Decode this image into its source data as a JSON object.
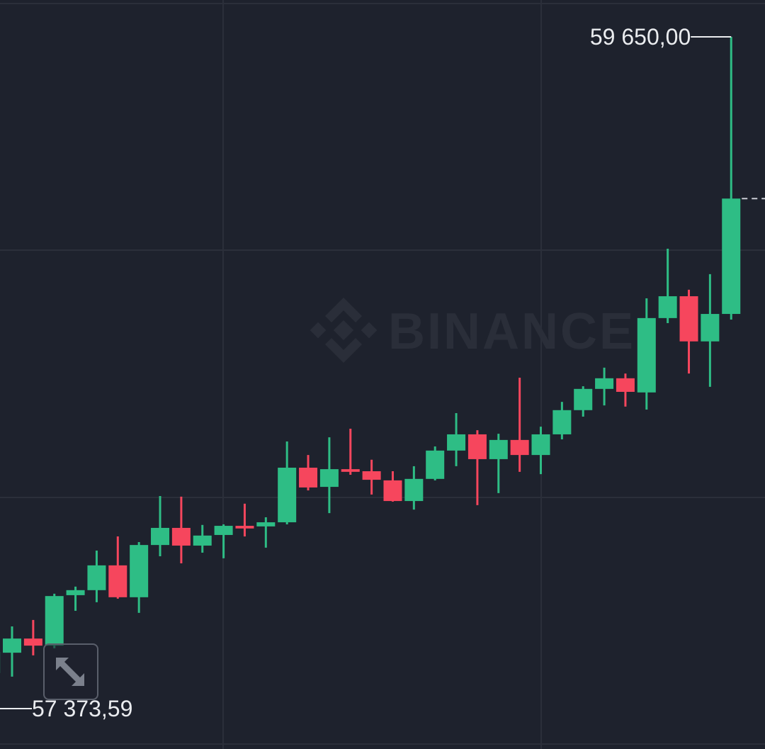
{
  "chart_data": {
    "type": "candlestick",
    "title": "",
    "watermark": "BINANCE",
    "high_label": "59 650,00",
    "low_label": "57 373,59",
    "last_close": 59102,
    "grid": true,
    "colors": {
      "background": "#1e222d",
      "up": "#2ebd85",
      "down": "#f6465d",
      "grid": "#2b2f3a",
      "label": "#eaecef"
    },
    "candles": [
      {
        "o": 57494,
        "h": 57578,
        "l": 57373.59,
        "c": 57566
      },
      {
        "o": 57563,
        "h": 57652,
        "l": 57482,
        "c": 57611
      },
      {
        "o": 57611,
        "h": 57674,
        "l": 57554,
        "c": 57587
      },
      {
        "o": 57587,
        "h": 57763,
        "l": 57578,
        "c": 57755
      },
      {
        "o": 57758,
        "h": 57787,
        "l": 57705,
        "c": 57775
      },
      {
        "o": 57775,
        "h": 57909,
        "l": 57734,
        "c": 57859
      },
      {
        "o": 57859,
        "h": 57957,
        "l": 57746,
        "c": 57751
      },
      {
        "o": 57751,
        "h": 57938,
        "l": 57698,
        "c": 57928
      },
      {
        "o": 57928,
        "h": 58094,
        "l": 57890,
        "c": 57986
      },
      {
        "o": 57986,
        "h": 58092,
        "l": 57866,
        "c": 57926
      },
      {
        "o": 57926,
        "h": 57996,
        "l": 57902,
        "c": 57960
      },
      {
        "o": 57962,
        "h": 57998,
        "l": 57883,
        "c": 57993
      },
      {
        "o": 57993,
        "h": 58068,
        "l": 57957,
        "c": 57984
      },
      {
        "o": 57991,
        "h": 58022,
        "l": 57919,
        "c": 58005
      },
      {
        "o": 58005,
        "h": 58279,
        "l": 57998,
        "c": 58190
      },
      {
        "o": 58190,
        "h": 58233,
        "l": 58113,
        "c": 58123
      },
      {
        "o": 58125,
        "h": 58293,
        "l": 58036,
        "c": 58185
      },
      {
        "o": 58185,
        "h": 58322,
        "l": 58166,
        "c": 58176
      },
      {
        "o": 58178,
        "h": 58217,
        "l": 58099,
        "c": 58149
      },
      {
        "o": 58147,
        "h": 58178,
        "l": 58075,
        "c": 58077
      },
      {
        "o": 58077,
        "h": 58195,
        "l": 58048,
        "c": 58152
      },
      {
        "o": 58152,
        "h": 58262,
        "l": 58147,
        "c": 58248
      },
      {
        "o": 58248,
        "h": 58375,
        "l": 58195,
        "c": 58303
      },
      {
        "o": 58303,
        "h": 58317,
        "l": 58063,
        "c": 58219
      },
      {
        "o": 58219,
        "h": 58305,
        "l": 58104,
        "c": 58284
      },
      {
        "o": 58284,
        "h": 58495,
        "l": 58176,
        "c": 58233
      },
      {
        "o": 58233,
        "h": 58329,
        "l": 58168,
        "c": 58303
      },
      {
        "o": 58303,
        "h": 58413,
        "l": 58286,
        "c": 58385
      },
      {
        "o": 58385,
        "h": 58466,
        "l": 58363,
        "c": 58457
      },
      {
        "o": 58457,
        "h": 58529,
        "l": 58401,
        "c": 58493
      },
      {
        "o": 58493,
        "h": 58509,
        "l": 58397,
        "c": 58447
      },
      {
        "o": 58445,
        "h": 58764,
        "l": 58387,
        "c": 58697
      },
      {
        "o": 58697,
        "h": 58932,
        "l": 58680,
        "c": 58771
      },
      {
        "o": 58771,
        "h": 58793,
        "l": 58509,
        "c": 58618
      },
      {
        "o": 58618,
        "h": 58846,
        "l": 58464,
        "c": 58711
      },
      {
        "o": 58711,
        "h": 59650,
        "l": 58692,
        "c": 59102
      }
    ]
  },
  "controls": {
    "expand_icon": "expand-arrows-icon"
  }
}
